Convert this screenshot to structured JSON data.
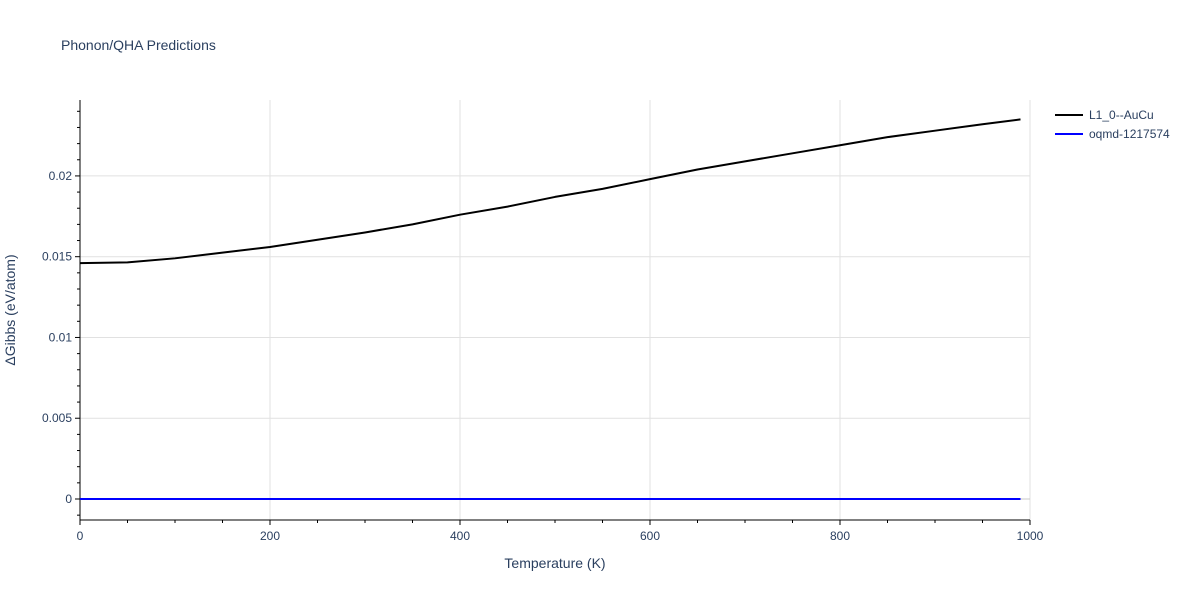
{
  "chart_data": {
    "type": "line",
    "title": "Phonon/QHA Predictions",
    "xlabel": "Temperature (K)",
    "ylabel": "ΔGibbs (eV/atom)",
    "xlim": [
      0,
      1000
    ],
    "ylim": [
      -0.0013,
      0.0247
    ],
    "x_ticks": [
      0,
      200,
      400,
      600,
      800,
      1000
    ],
    "y_ticks": [
      0,
      0.005,
      0.01,
      0.015,
      0.02
    ],
    "x_tick_labels": [
      "0",
      "200",
      "400",
      "600",
      "800",
      "1000"
    ],
    "y_tick_labels": [
      "0",
      "0.005",
      "0.01",
      "0.015",
      "0.02"
    ],
    "grid": true,
    "legend_position": "top-right outside",
    "series": [
      {
        "name": "L1_0--AuCu",
        "color": "#000000",
        "x": [
          0,
          50,
          100,
          150,
          200,
          250,
          300,
          350,
          400,
          450,
          500,
          550,
          600,
          650,
          700,
          750,
          800,
          850,
          900,
          950,
          990
        ],
        "y": [
          0.0146,
          0.01465,
          0.0149,
          0.01525,
          0.0156,
          0.01605,
          0.0165,
          0.017,
          0.0176,
          0.0181,
          0.0187,
          0.0192,
          0.0198,
          0.0204,
          0.0209,
          0.0214,
          0.0219,
          0.0224,
          0.0228,
          0.0232,
          0.0235
        ]
      },
      {
        "name": "oqmd-1217574",
        "color": "#0000ff",
        "x": [
          0,
          990
        ],
        "y": [
          0,
          0
        ]
      }
    ]
  }
}
